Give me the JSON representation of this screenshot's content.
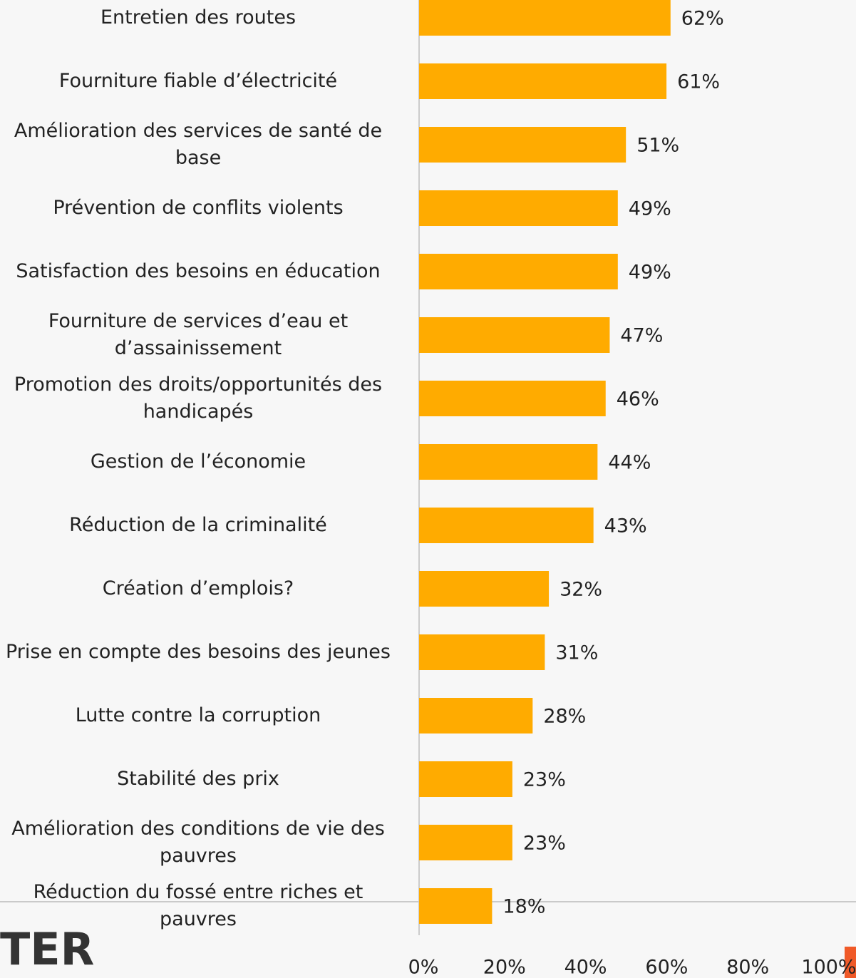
{
  "chart_data": {
    "type": "barh",
    "categories": [
      "Entretien des routes",
      "Fourniture fiable d’électricité",
      "Amélioration des services de santé de base",
      "Prévention de conflits violents",
      "Satisfaction des besoins en éducation",
      "Fourniture de services d’eau et d’assainissement",
      "Promotion des droits/opportunités des handicapés",
      "Gestion de l’économie",
      "Réduction de la criminalité",
      "Création d’emplois?",
      "Prise en compte des besoins des jeunes",
      "Lutte contre la corruption",
      "Stabilité des prix",
      "Amélioration des conditions de vie des pauvres",
      "Réduction du fossé entre riches et pauvres"
    ],
    "values": [
      62,
      61,
      51,
      49,
      49,
      47,
      46,
      44,
      43,
      32,
      31,
      28,
      23,
      23,
      18
    ],
    "value_labels": [
      "62%",
      "61%",
      "51%",
      "49%",
      "49%",
      "47%",
      "46%",
      "44%",
      "43%",
      "32%",
      "31%",
      "28%",
      "23%",
      "23%",
      "18%"
    ],
    "color": "#ffab00",
    "xlim": [
      0,
      100
    ],
    "xticks": [
      {
        "value": 0,
        "label": "0%"
      },
      {
        "value": 20,
        "label": "20%"
      },
      {
        "value": 40,
        "label": "40%"
      },
      {
        "value": 60,
        "label": "60%"
      },
      {
        "value": 80,
        "label": "80%"
      },
      {
        "value": 100,
        "label": "100%"
      }
    ],
    "grid": false
  },
  "logo": "TER"
}
